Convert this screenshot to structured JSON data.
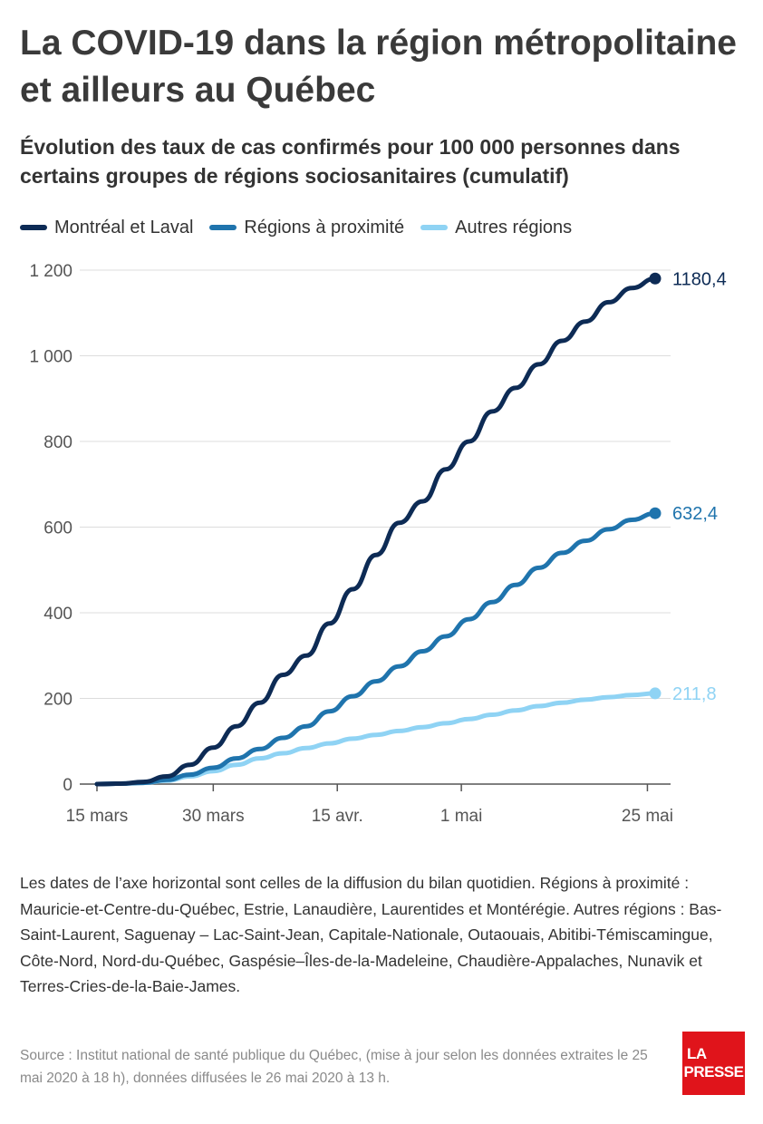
{
  "header": {
    "title": "La COVID-19 dans la région métropolitaine et ailleurs au Québec",
    "subtitle": "Évolution des taux de cas confirmés pour 100 000 personnes dans certains groupes de régions sociosanitaires (cumulatif)"
  },
  "legend": [
    {
      "label": "Montréal et Laval",
      "color": "#0d2b55"
    },
    {
      "label": "Régions à proximité",
      "color": "#1f74ad"
    },
    {
      "label": "Autres régions",
      "color": "#8fd3f4"
    }
  ],
  "chart_data": {
    "type": "line",
    "ylim": [
      0,
      1200
    ],
    "yticks": [
      0,
      200,
      400,
      600,
      800,
      1000,
      1200
    ],
    "ytick_labels": [
      "0",
      "200",
      "400",
      "600",
      "800",
      "1 000",
      "1 200"
    ],
    "x_range": [
      "2020-03-15",
      "2020-05-26"
    ],
    "xticks": [
      {
        "date": "2020-03-15",
        "label": "15 mars"
      },
      {
        "date": "2020-03-30",
        "label": "30 mars"
      },
      {
        "date": "2020-04-15",
        "label": "15 avr."
      },
      {
        "date": "2020-05-01",
        "label": "1 mai"
      },
      {
        "date": "2020-05-25",
        "label": "25 mai"
      }
    ],
    "grid": "horizontal",
    "series": [
      {
        "name": "Montréal et Laval",
        "color": "#0d2b55",
        "end_label": "1180,4",
        "points": [
          [
            "2020-03-15",
            0
          ],
          [
            "2020-03-18",
            1
          ],
          [
            "2020-03-21",
            5
          ],
          [
            "2020-03-24",
            18
          ],
          [
            "2020-03-27",
            45
          ],
          [
            "2020-03-30",
            85
          ],
          [
            "2020-04-02",
            135
          ],
          [
            "2020-04-05",
            190
          ],
          [
            "2020-04-08",
            255
          ],
          [
            "2020-04-11",
            300
          ],
          [
            "2020-04-14",
            375
          ],
          [
            "2020-04-17",
            455
          ],
          [
            "2020-04-20",
            535
          ],
          [
            "2020-04-23",
            610
          ],
          [
            "2020-04-26",
            660
          ],
          [
            "2020-04-29",
            735
          ],
          [
            "2020-05-02",
            800
          ],
          [
            "2020-05-05",
            870
          ],
          [
            "2020-05-08",
            925
          ],
          [
            "2020-05-11",
            980
          ],
          [
            "2020-05-14",
            1035
          ],
          [
            "2020-05-17",
            1080
          ],
          [
            "2020-05-20",
            1125
          ],
          [
            "2020-05-23",
            1158
          ],
          [
            "2020-05-26",
            1180.4
          ]
        ]
      },
      {
        "name": "Régions à proximité",
        "color": "#1f74ad",
        "end_label": "632,4",
        "points": [
          [
            "2020-03-15",
            0
          ],
          [
            "2020-03-18",
            1
          ],
          [
            "2020-03-21",
            3
          ],
          [
            "2020-03-24",
            10
          ],
          [
            "2020-03-27",
            22
          ],
          [
            "2020-03-30",
            38
          ],
          [
            "2020-04-02",
            60
          ],
          [
            "2020-04-05",
            82
          ],
          [
            "2020-04-08",
            108
          ],
          [
            "2020-04-11",
            135
          ],
          [
            "2020-04-14",
            170
          ],
          [
            "2020-04-17",
            205
          ],
          [
            "2020-04-20",
            240
          ],
          [
            "2020-04-23",
            275
          ],
          [
            "2020-04-26",
            310
          ],
          [
            "2020-04-29",
            345
          ],
          [
            "2020-05-02",
            385
          ],
          [
            "2020-05-05",
            425
          ],
          [
            "2020-05-08",
            465
          ],
          [
            "2020-05-11",
            505
          ],
          [
            "2020-05-14",
            540
          ],
          [
            "2020-05-17",
            568
          ],
          [
            "2020-05-20",
            595
          ],
          [
            "2020-05-23",
            617
          ],
          [
            "2020-05-26",
            632.4
          ]
        ]
      },
      {
        "name": "Autres régions",
        "color": "#8fd3f4",
        "end_label": "211,8",
        "points": [
          [
            "2020-03-15",
            0
          ],
          [
            "2020-03-18",
            1
          ],
          [
            "2020-03-21",
            3
          ],
          [
            "2020-03-24",
            8
          ],
          [
            "2020-03-27",
            18
          ],
          [
            "2020-03-30",
            30
          ],
          [
            "2020-04-02",
            45
          ],
          [
            "2020-04-05",
            60
          ],
          [
            "2020-04-08",
            72
          ],
          [
            "2020-04-11",
            84
          ],
          [
            "2020-04-14",
            95
          ],
          [
            "2020-04-17",
            106
          ],
          [
            "2020-04-20",
            115
          ],
          [
            "2020-04-23",
            124
          ],
          [
            "2020-04-26",
            133
          ],
          [
            "2020-04-29",
            142
          ],
          [
            "2020-05-02",
            152
          ],
          [
            "2020-05-05",
            162
          ],
          [
            "2020-05-08",
            172
          ],
          [
            "2020-05-11",
            182
          ],
          [
            "2020-05-14",
            190
          ],
          [
            "2020-05-17",
            197
          ],
          [
            "2020-05-20",
            203
          ],
          [
            "2020-05-23",
            208
          ],
          [
            "2020-05-26",
            211.8
          ]
        ]
      }
    ]
  },
  "notes": "Les dates de l’axe horizontal sont celles de la diffusion du bilan quotidien. Régions à proximité : Mauricie-et-Centre-du-Québec, Estrie, Lanaudière, Laurentides et Montérégie. Autres régions : Bas-Saint-Laurent, Saguenay – Lac-Saint-Jean, Capitale-Nationale, Outaouais, Abitibi-Témiscamingue, Côte-Nord, Nord-du-Québec, Gaspésie–Îles-de-la-Madeleine, Chaudière-Appalaches, Nunavik et Terres-Cries-de-la-Baie-James.",
  "source": "Source : Institut national de santé publique du Québec, (mise à jour selon les données extraites le 25 mai 2020 à 18 h), données diffusées le 26 mai 2020 à 13 h.",
  "logo": {
    "line1": "LA",
    "line2": "PRESSE",
    "color": "#e0141b"
  }
}
